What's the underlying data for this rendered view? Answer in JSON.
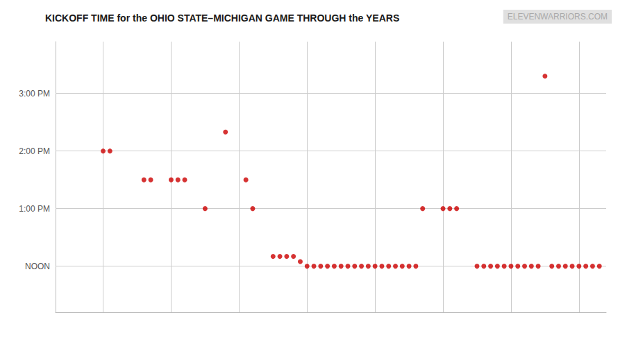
{
  "chart_data": {
    "type": "scatter",
    "title": "KICKOFF TIME for the OHIO STATE–MICHIGAN GAME THROUGH the YEARS",
    "annotations": [
      "ELEVENWARRIORS.COM"
    ],
    "color": "#cc0000",
    "x": [
      1940,
      1941,
      1946,
      1947,
      1950,
      1951,
      1952,
      1955,
      1958,
      1961,
      1962,
      1965,
      1966,
      1967,
      1968,
      1969,
      1970,
      1971,
      1972,
      1973,
      1974,
      1975,
      1976,
      1977,
      1978,
      1979,
      1980,
      1981,
      1982,
      1983,
      1984,
      1985,
      1986,
      1987,
      1990,
      1991,
      1992,
      1995,
      1996,
      1997,
      1998,
      1999,
      2000,
      2001,
      2002,
      2003,
      2004,
      2005,
      2006,
      2007,
      2008,
      2009,
      2010,
      2011,
      2012,
      2013
    ],
    "values": [
      14.0,
      14.0,
      13.5,
      13.5,
      13.5,
      13.5,
      13.5,
      13.0,
      14.33,
      13.5,
      13.0,
      12.17,
      12.17,
      12.17,
      12.17,
      12.08,
      12.0,
      12.0,
      12.0,
      12.0,
      12.0,
      12.0,
      12.0,
      12.0,
      12.0,
      12.0,
      12.0,
      12.0,
      12.0,
      12.0,
      12.0,
      12.0,
      12.0,
      13.0,
      13.0,
      13.0,
      13.0,
      12.0,
      12.0,
      12.0,
      12.0,
      12.0,
      12.0,
      12.0,
      12.0,
      12.0,
      12.0,
      15.3,
      12.0,
      12.0,
      12.0,
      12.0,
      12.0,
      12.0,
      12.0,
      12.0
    ],
    "xlim": [
      1933,
      2014
    ],
    "xticks": [
      1940,
      1950,
      1960,
      1970,
      1980,
      1990,
      2000,
      2010
    ],
    "ylim": [
      11.2,
      15.9
    ],
    "yticks": [
      {
        "value": 12.0,
        "label": "NOON"
      },
      {
        "value": 13.0,
        "label": "1:00 PM"
      },
      {
        "value": 14.0,
        "label": "2:00 PM"
      },
      {
        "value": 15.0,
        "label": "3:00 PM"
      }
    ],
    "grid": true,
    "tick_labels": "y"
  }
}
